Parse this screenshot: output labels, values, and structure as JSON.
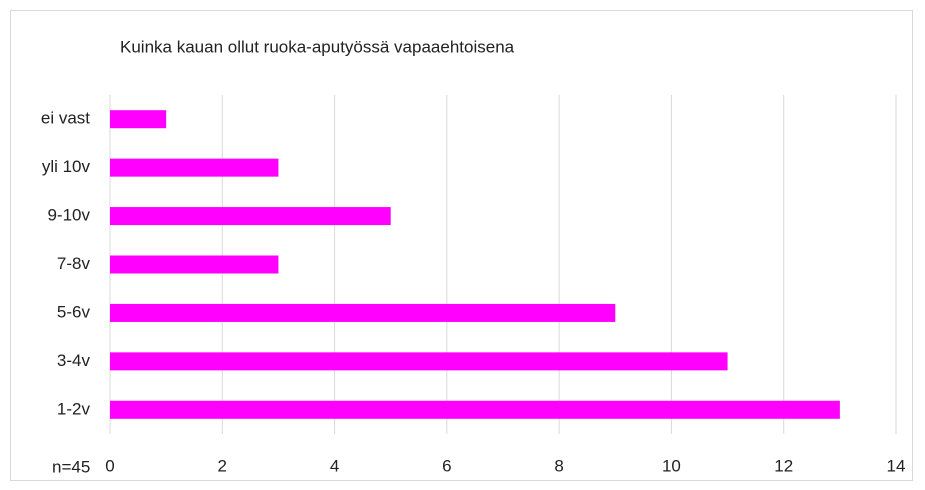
{
  "chart_data": {
    "type": "bar",
    "orientation": "horizontal",
    "title": "Kuinka kauan ollut ruoka-aputyössä vapaaehtoisena",
    "annotation": "n=45",
    "categories": [
      "ei vast",
      "yli 10v",
      "9-10v",
      "7-8v",
      "5-6v",
      "3-4v",
      "1-2v"
    ],
    "values": [
      1,
      3,
      5,
      3,
      9,
      11,
      13
    ],
    "color": "#ff00ff",
    "xlim": [
      0,
      14
    ],
    "xticks": [
      0,
      2,
      4,
      6,
      8,
      10,
      12,
      14
    ],
    "grid": true
  }
}
